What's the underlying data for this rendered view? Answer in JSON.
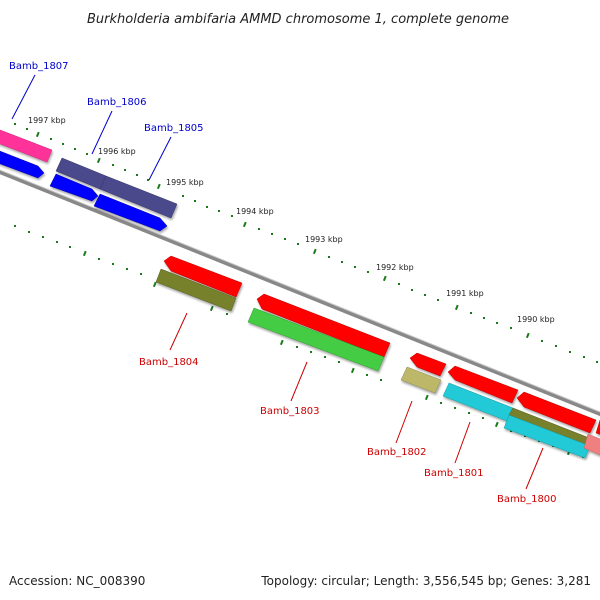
{
  "title": "Burkholderia ambifaria AMMD chromosome 1, complete genome",
  "footer": {
    "accession": "Accession: NC_008390",
    "summary": "Topology: circular; Length: 3,556,545 bp; Genes: 3,281"
  },
  "scale_labels": [
    "1997 kbp",
    "1996 kbp",
    "1995 kbp",
    "1994 kbp",
    "1993 kbp",
    "1992 kbp",
    "1991 kbp",
    "1990 kbp"
  ],
  "genes_top": [
    "Bamb_1807",
    "Bamb_1806",
    "Bamb_1805"
  ],
  "genes_bottom": [
    "Bamb_1804",
    "Bamb_1803",
    "Bamb_1802",
    "Bamb_1801",
    "Bamb_1800"
  ],
  "colors": {
    "backbone": "#888888",
    "magenta": "#ff3399",
    "navy": "#4a4a8c",
    "blue": "#0000ff",
    "red": "#ff0000",
    "olive": "#77802a",
    "green": "#44cc44",
    "khaki": "#bdb76b",
    "cyan": "#22c9d6",
    "pink": "#f08080",
    "tick": "#1a7a1a"
  }
}
